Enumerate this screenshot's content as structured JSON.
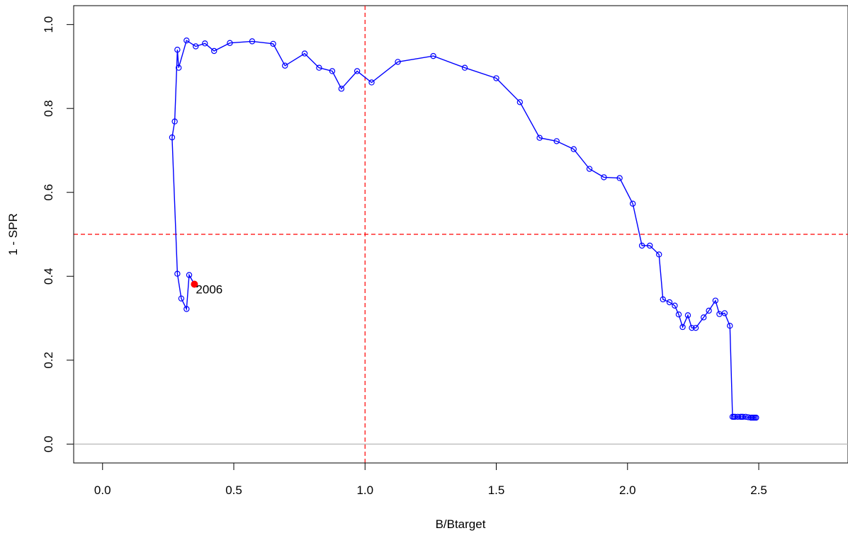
{
  "chart_data": {
    "type": "line",
    "title": "",
    "xlabel": "B/Btarget",
    "ylabel": "1 - SPR",
    "xlim": [
      -0.11,
      2.84
    ],
    "ylim": [
      -0.045,
      1.045
    ],
    "x_ticks": [
      "0.0",
      "0.5",
      "1.0",
      "1.5",
      "2.0",
      "2.5"
    ],
    "y_ticks": [
      "0.0",
      "0.2",
      "0.4",
      "0.6",
      "0.8",
      "1.0"
    ],
    "grid": false,
    "reference_lines": [
      {
        "orientation": "vertical",
        "value": 1.0,
        "color": "#ff0000",
        "style": "dashed"
      },
      {
        "orientation": "horizontal",
        "value": 0.5,
        "color": "#ff0000",
        "style": "dashed"
      },
      {
        "orientation": "horizontal",
        "value": 0.0,
        "color": "#b0b0b0",
        "style": "solid"
      }
    ],
    "series": [
      {
        "color": "#0000ff",
        "points": [
          [
            2.49,
            0.063
          ],
          [
            2.485,
            0.063
          ],
          [
            2.48,
            0.063
          ],
          [
            2.475,
            0.063
          ],
          [
            2.47,
            0.063
          ],
          [
            2.46,
            0.064
          ],
          [
            2.45,
            0.065
          ],
          [
            2.44,
            0.065
          ],
          [
            2.435,
            0.065
          ],
          [
            2.43,
            0.065
          ],
          [
            2.42,
            0.065
          ],
          [
            2.41,
            0.065
          ],
          [
            2.405,
            0.065
          ],
          [
            2.4,
            0.065
          ],
          [
            2.39,
            0.282
          ],
          [
            2.37,
            0.312
          ],
          [
            2.35,
            0.31
          ],
          [
            2.335,
            0.342
          ],
          [
            2.31,
            0.318
          ],
          [
            2.29,
            0.302
          ],
          [
            2.26,
            0.277
          ],
          [
            2.245,
            0.277
          ],
          [
            2.23,
            0.307
          ],
          [
            2.21,
            0.279
          ],
          [
            2.195,
            0.309
          ],
          [
            2.18,
            0.33
          ],
          [
            2.16,
            0.338
          ],
          [
            2.135,
            0.345
          ],
          [
            2.12,
            0.452
          ],
          [
            2.085,
            0.473
          ],
          [
            2.055,
            0.473
          ],
          [
            2.02,
            0.573
          ],
          [
            1.97,
            0.634
          ],
          [
            1.91,
            0.636
          ],
          [
            1.855,
            0.656
          ],
          [
            1.795,
            0.703
          ],
          [
            1.73,
            0.722
          ],
          [
            1.665,
            0.73
          ],
          [
            1.59,
            0.815
          ],
          [
            1.5,
            0.872
          ],
          [
            1.38,
            0.897
          ],
          [
            1.26,
            0.925
          ],
          [
            1.125,
            0.911
          ],
          [
            1.025,
            0.862
          ],
          [
            0.97,
            0.889
          ],
          [
            0.91,
            0.847
          ],
          [
            0.875,
            0.889
          ],
          [
            0.825,
            0.897
          ],
          [
            0.77,
            0.931
          ],
          [
            0.695,
            0.902
          ],
          [
            0.65,
            0.954
          ],
          [
            0.57,
            0.96
          ],
          [
            0.485,
            0.956
          ],
          [
            0.425,
            0.937
          ],
          [
            0.39,
            0.955
          ],
          [
            0.355,
            0.948
          ],
          [
            0.32,
            0.962
          ],
          [
            0.29,
            0.897
          ],
          [
            0.285,
            0.94
          ],
          [
            0.275,
            0.769
          ],
          [
            0.265,
            0.731
          ],
          [
            0.285,
            0.406
          ],
          [
            0.3,
            0.347
          ],
          [
            0.32,
            0.322
          ],
          [
            0.33,
            0.403
          ],
          [
            0.35,
            0.381
          ]
        ]
      }
    ],
    "last_point": {
      "x": 0.35,
      "y": 0.381,
      "label": "2006",
      "color": "#ff0000"
    }
  }
}
